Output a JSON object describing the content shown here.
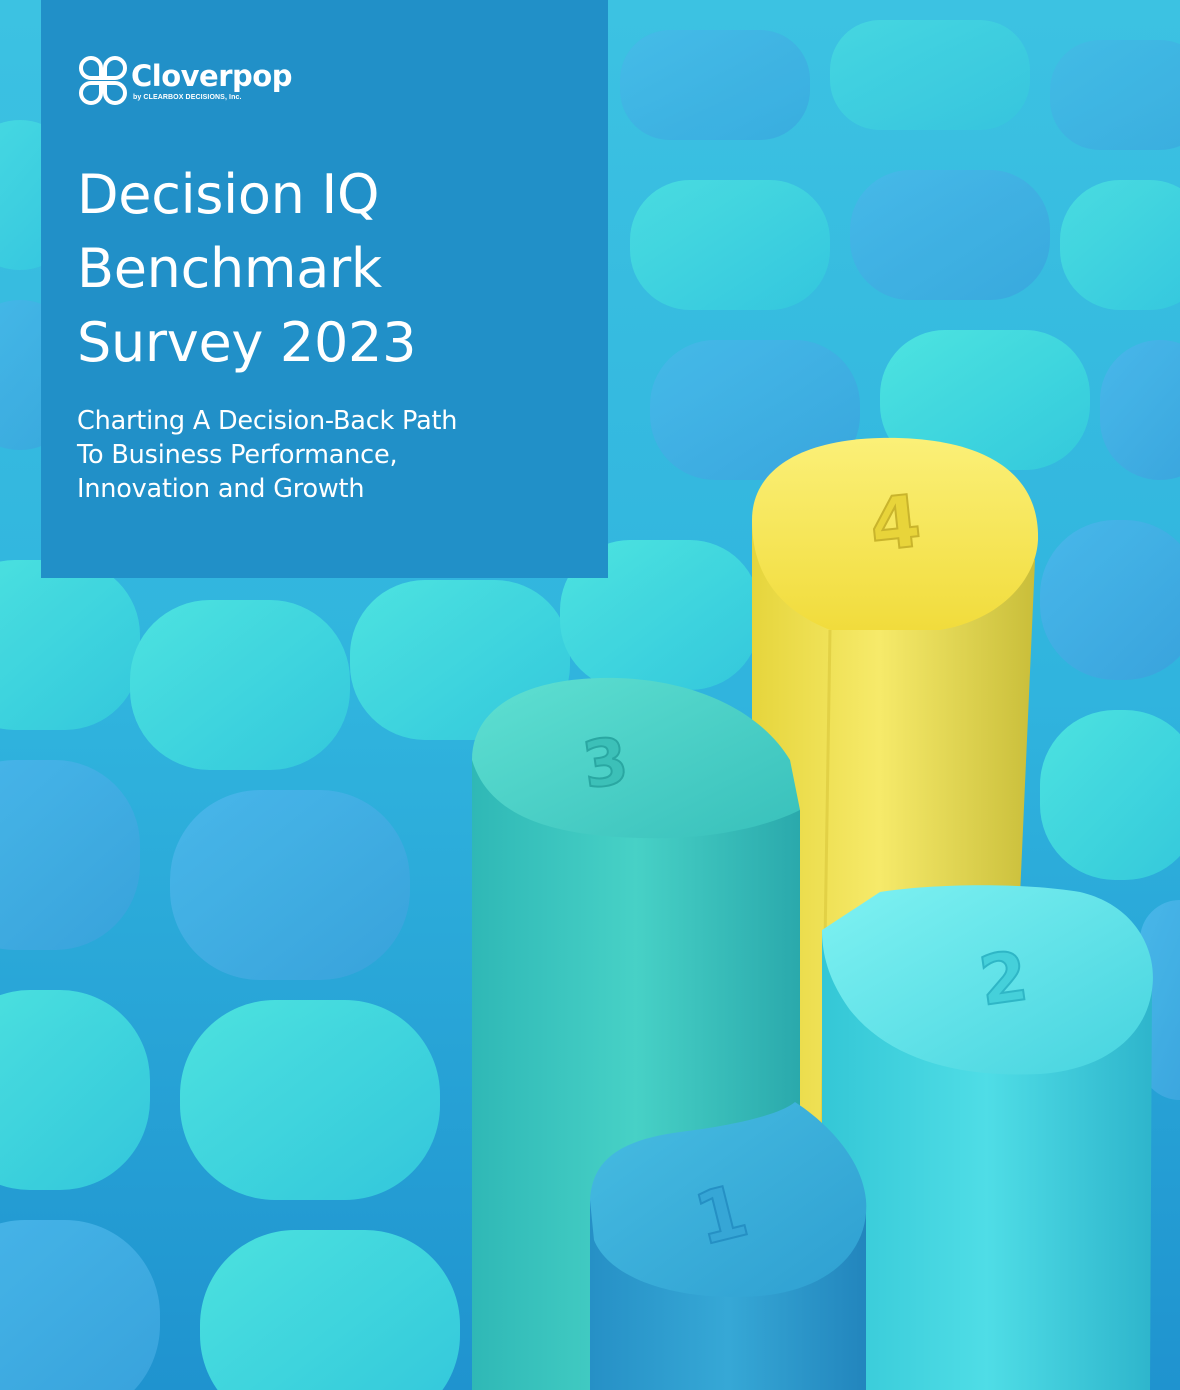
{
  "brand": {
    "name": "Cloverpop",
    "byline": "by CLEARBOX DECISIONS, Inc.",
    "mark_icon": "clover-logo-icon"
  },
  "cover": {
    "title_lines": [
      "Decision IQ",
      "Benchmark",
      "Survey 2023"
    ],
    "subtitle_lines": [
      "Charting A Decision-Back Path",
      "To Business Performance,",
      "Innovation and Growth"
    ]
  },
  "podium": {
    "labels": [
      "1",
      "2",
      "3",
      "4"
    ]
  },
  "colors": {
    "panel": "#2190c8",
    "background": "#2aa9d6",
    "pillar_yellow": "#f3e24a",
    "pillar_teal": "#3fc9c2",
    "pillar_cyan": "#45d8e0",
    "pillar_blue": "#2ba3cf"
  }
}
